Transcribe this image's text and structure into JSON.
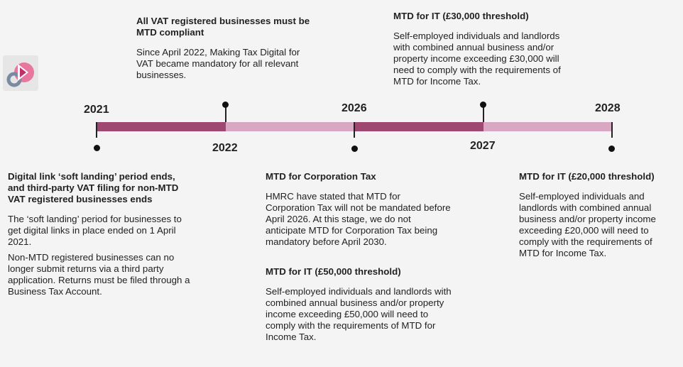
{
  "colors": {
    "dark": "#9e4771",
    "light": "#d8a7c1",
    "line": "#222222"
  },
  "logo": {
    "icon": "play-logo-icon"
  },
  "years": {
    "y2021": "2021",
    "y2022": "2022",
    "y2026": "2026",
    "y2027": "2027",
    "y2028": "2028"
  },
  "events": {
    "vat": {
      "title": "All VAT registered businesses must be MTD compliant",
      "body": "Since April 2022, Making Tax Digital for VAT became mandatory for all relevant businesses."
    },
    "it30": {
      "title": "MTD for IT (£30,000 threshold)",
      "body": "Self-employed individuals and landlords with combined annual business and/or property income exceeding £30,000 will need to comply with the requirements of MTD for Income Tax."
    },
    "digital": {
      "title": "Digital link ‘soft landing’ period ends, and third-party VAT filing for non-MTD VAT registered businesses ends",
      "body1": "The ‘soft landing’ period for businesses to get digital links in place ended on 1 April 2021.",
      "body2": "Non-MTD registered businesses can no longer submit returns via a third party application. Returns must be filed through a Business Tax Account."
    },
    "ct": {
      "title": "MTD for Corporation Tax",
      "body": "HMRC have stated that MTD for Corporation Tax will not be mandated before April 2026. At this stage, we do not anticipate MTD for Corporation Tax being mandatory before April 2030."
    },
    "it50": {
      "title": "MTD for IT (£50,000 threshold)",
      "body": "Self-employed individuals and landlords with combined annual business and/or property income exceeding £50,000 will need to comply with the requirements of MTD for Income Tax."
    },
    "it20": {
      "title": "MTD for IT (£20,000 threshold)",
      "body": "Self-employed individuals and landlords with combined annual business and/or property income exceeding £20,000 will need to comply with the requirements of MTD for Income Tax."
    }
  }
}
